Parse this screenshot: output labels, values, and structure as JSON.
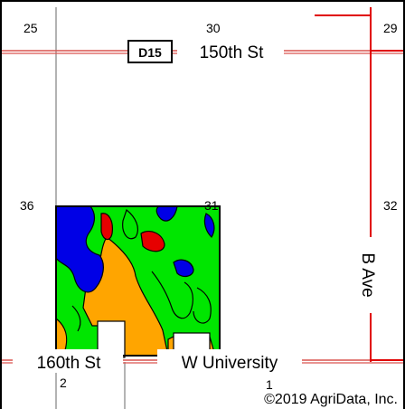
{
  "map": {
    "roads": {
      "north": "150th St",
      "south_left": "160th St",
      "south_right": "W University",
      "east": "B Ave"
    },
    "highway_shield": "D15",
    "sections": {
      "top_left": "25",
      "top_mid": "30",
      "top_right": "29",
      "mid_left": "36",
      "mid_center": "31",
      "mid_right": "32",
      "bottom_left": "2",
      "bottom_mid": "1"
    },
    "copyright": "©2019 AgriData, Inc.",
    "colors": {
      "frame": "#000000",
      "road": "#d9534f",
      "section_line": "#9a9a9a",
      "soil_green": "#00e600",
      "soil_orange": "#ffa500",
      "soil_blue": "#0000e6",
      "soil_red": "#e60000",
      "field_outline": "#000000"
    }
  }
}
